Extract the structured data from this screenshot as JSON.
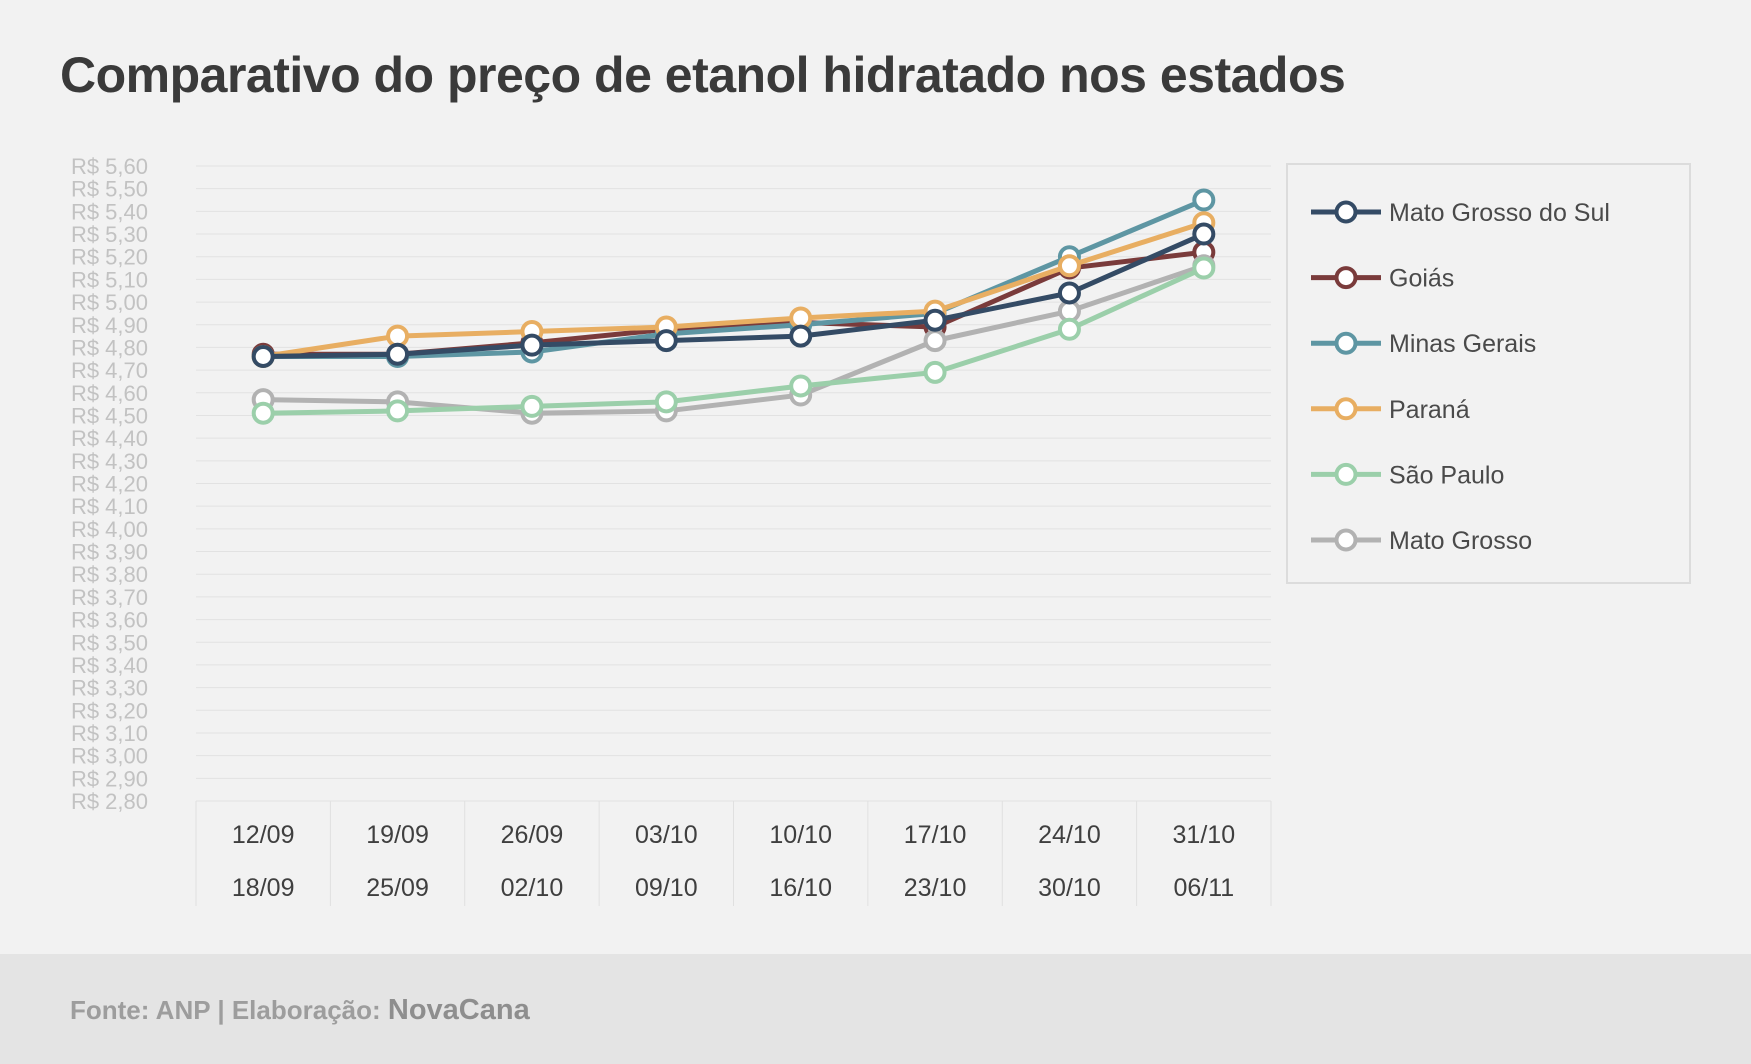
{
  "title": "Comparativo do preço de etanol hidratado nos estados",
  "footer": {
    "source": "Fonte: ANP | Elaboração:",
    "brand": "NovaCana"
  },
  "chart_data": {
    "type": "line",
    "title": "Comparativo do preço de etanol hidratado nos estados",
    "xlabel": "",
    "ylabel": "",
    "ylim": [
      2.8,
      5.6
    ],
    "y_step": 0.1,
    "y_tick_labels": [
      "R$ 2,80",
      "R$ 2,90",
      "R$ 3,00",
      "R$ 3,10",
      "R$ 3,20",
      "R$ 3,30",
      "R$ 3,40",
      "R$ 3,50",
      "R$ 3,60",
      "R$ 3,70",
      "R$ 3,80",
      "R$ 3,90",
      "R$ 4,00",
      "R$ 4,10",
      "R$ 4,20",
      "R$ 4,30",
      "R$ 4,40",
      "R$ 4,50",
      "R$ 4,60",
      "R$ 4,70",
      "R$ 4,80",
      "R$ 4,90",
      "R$ 5,00",
      "R$ 5,10",
      "R$ 5,20",
      "R$ 5,30",
      "R$ 5,40",
      "R$ 5,50",
      "R$ 5,60"
    ],
    "categories": [
      {
        "start": "12/09",
        "end": "18/09"
      },
      {
        "start": "19/09",
        "end": "25/09"
      },
      {
        "start": "26/09",
        "end": "02/10"
      },
      {
        "start": "03/10",
        "end": "09/10"
      },
      {
        "start": "10/10",
        "end": "16/10"
      },
      {
        "start": "17/10",
        "end": "23/10"
      },
      {
        "start": "24/10",
        "end": "30/10"
      },
      {
        "start": "31/10",
        "end": "06/11"
      }
    ],
    "grid": true,
    "legend_position": "right",
    "series": [
      {
        "name": "Goiás",
        "color": "#7a3b3b",
        "values": [
          4.77,
          4.77,
          4.82,
          4.88,
          4.91,
          4.89,
          5.15,
          5.22
        ]
      },
      {
        "name": "Minas Gerais",
        "color": "#5e96a3",
        "values": [
          4.76,
          4.76,
          4.78,
          4.86,
          4.9,
          4.95,
          5.2,
          5.45
        ]
      },
      {
        "name": "Paraná",
        "color": "#e8ae62",
        "values": [
          4.76,
          4.85,
          4.87,
          4.89,
          4.93,
          4.96,
          5.16,
          5.35
        ]
      },
      {
        "name": "Mato Grosso",
        "color": "#b2b2b2",
        "values": [
          4.57,
          4.56,
          4.51,
          4.52,
          4.59,
          4.83,
          4.96,
          5.16
        ]
      },
      {
        "name": "São Paulo",
        "color": "#9bcfaa",
        "values": [
          4.51,
          4.52,
          4.54,
          4.56,
          4.63,
          4.69,
          4.88,
          5.15
        ]
      },
      {
        "name": "Mato Grosso do Sul",
        "color": "#344b65",
        "values": [
          4.76,
          4.77,
          4.81,
          4.83,
          4.85,
          4.92,
          5.04,
          5.3
        ]
      }
    ],
    "legend_order": [
      "Mato Grosso do Sul",
      "Goiás",
      "Minas Gerais",
      "Paraná",
      "São Paulo",
      "Mato Grosso"
    ]
  }
}
